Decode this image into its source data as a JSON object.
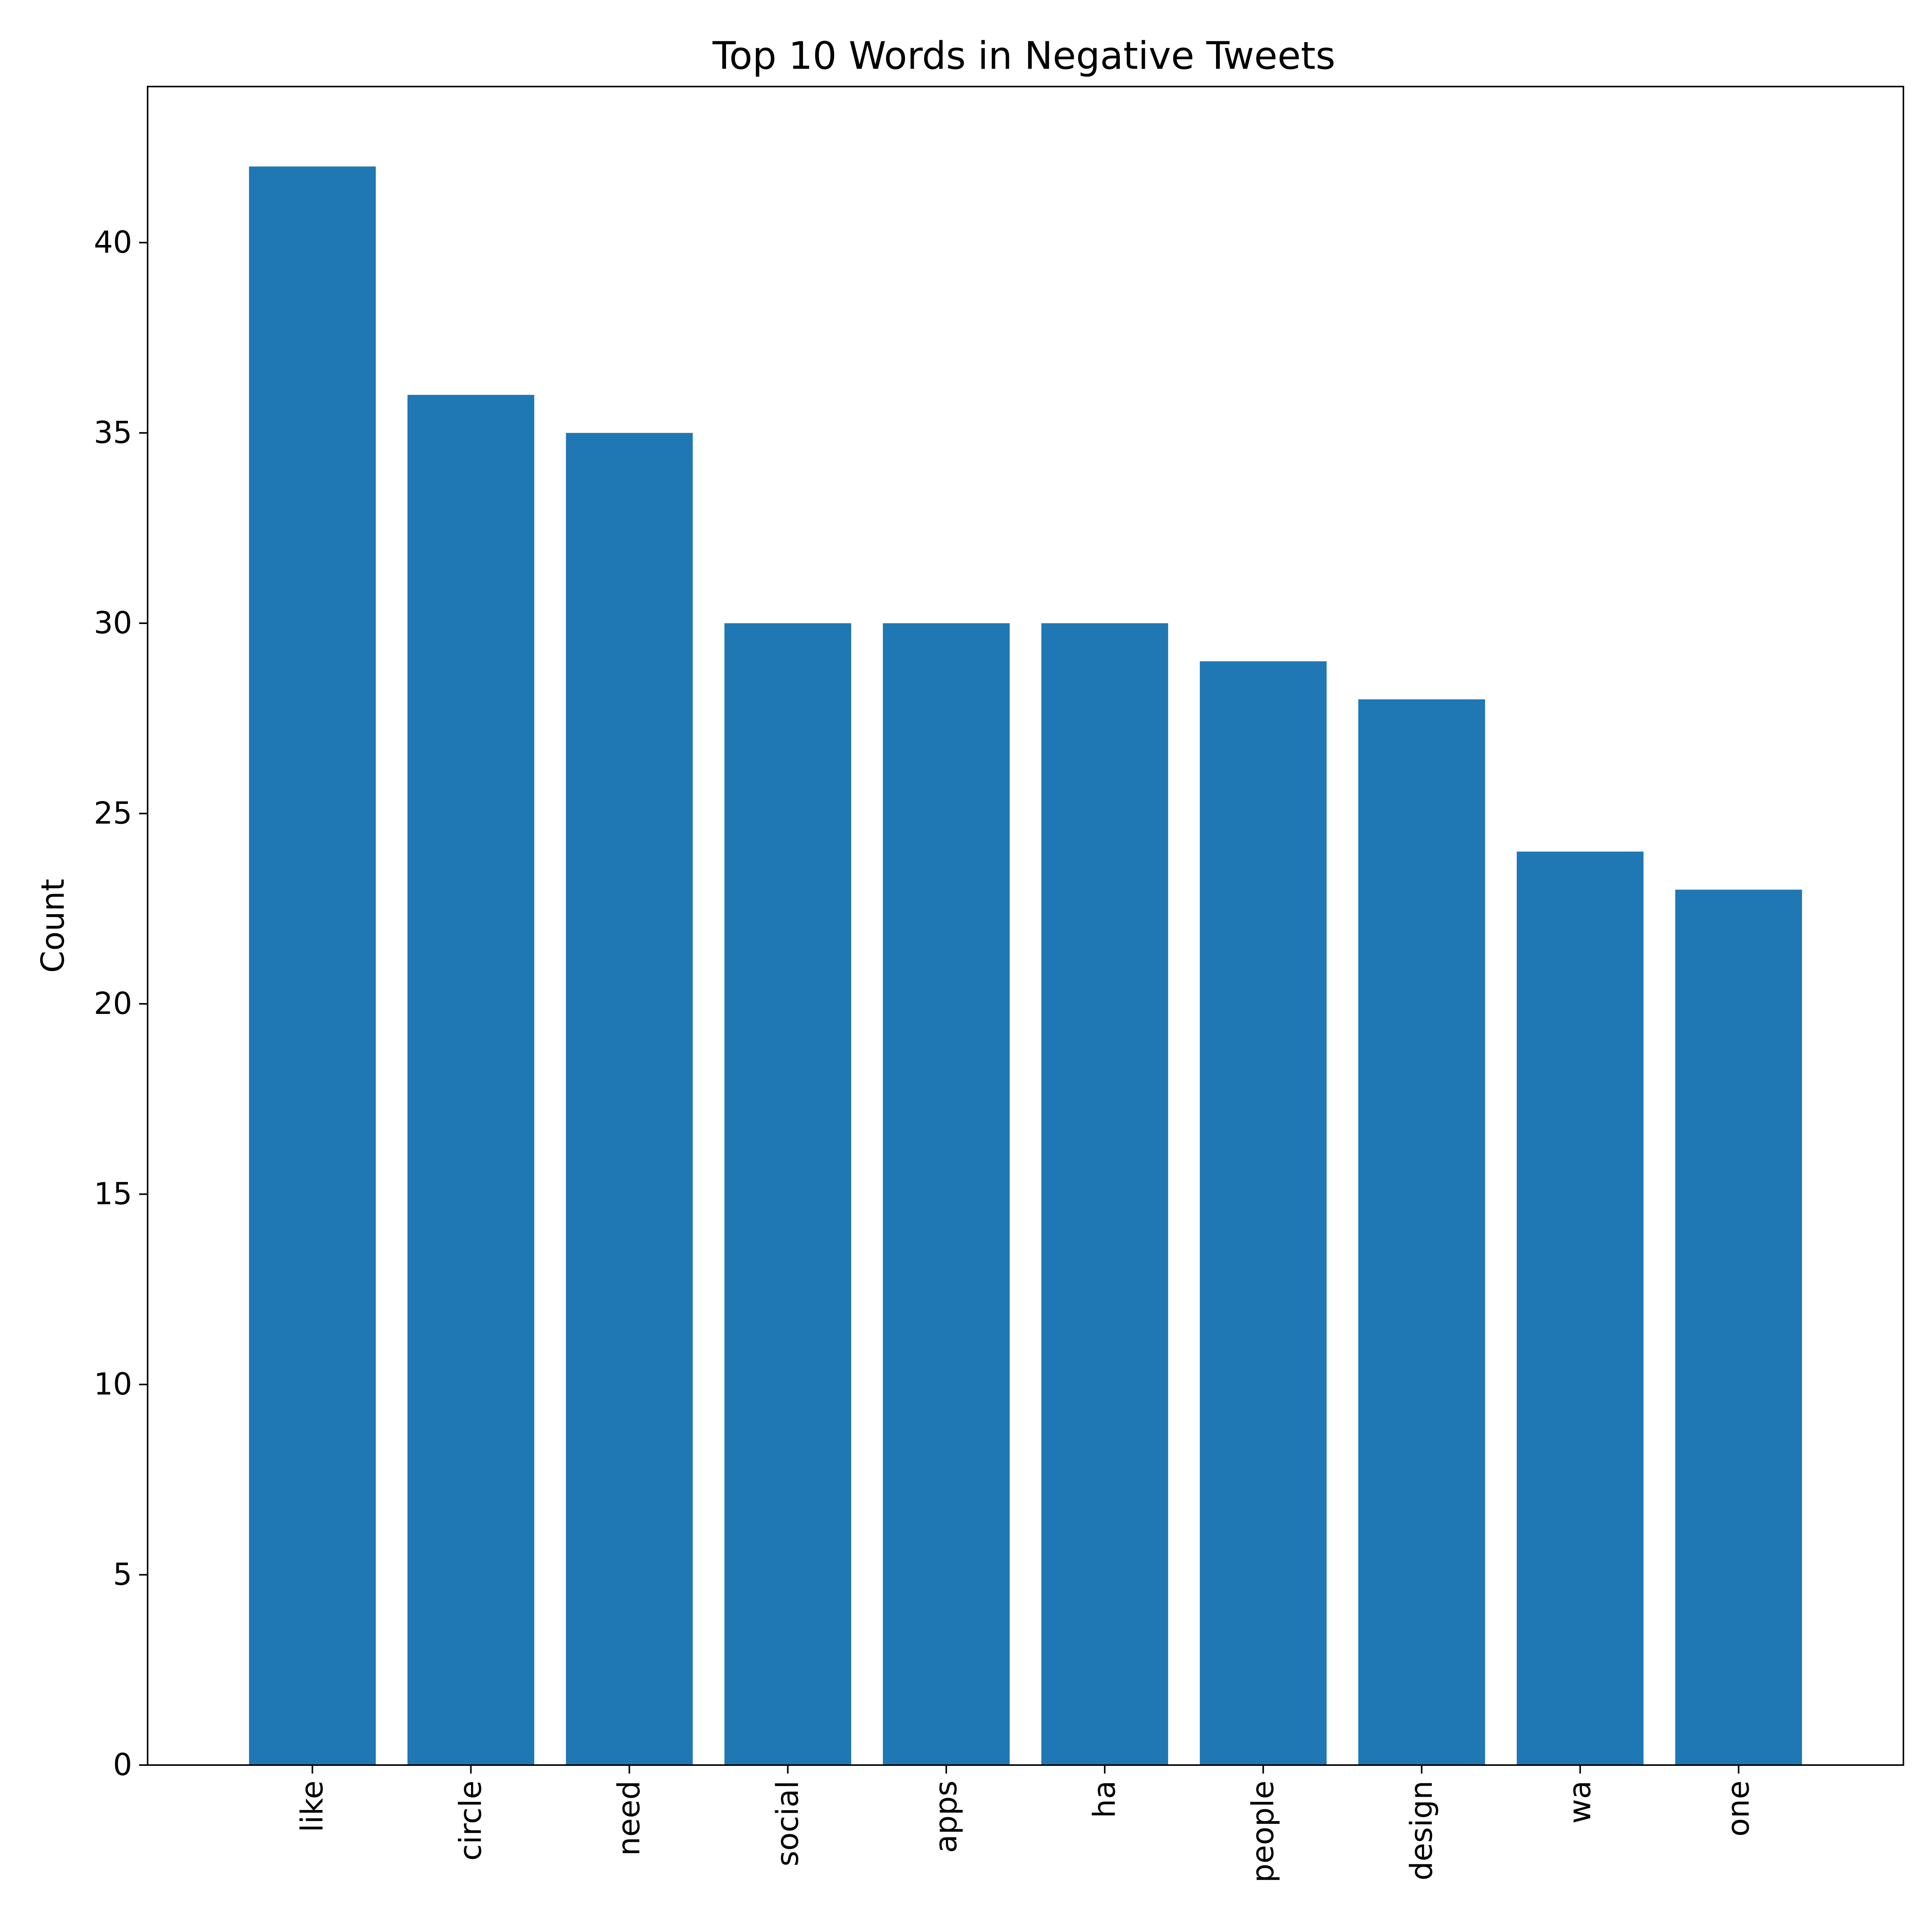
{
  "chart_data": {
    "type": "bar",
    "title": "Top 10 Words in Negative Tweets",
    "xlabel": "",
    "ylabel": "Count",
    "categories": [
      "like",
      "circle",
      "need",
      "social",
      "apps",
      "ha",
      "people",
      "design",
      "wa",
      "one"
    ],
    "values": [
      42,
      36,
      35,
      30,
      30,
      30,
      29,
      28,
      24,
      23
    ],
    "ylim": [
      0,
      44.1
    ],
    "yticks": [
      0,
      5,
      10,
      15,
      20,
      25,
      30,
      35,
      40
    ],
    "ytick_labels": [
      "0",
      "5",
      "10",
      "15",
      "20",
      "25",
      "30",
      "35",
      "40"
    ],
    "grid": false,
    "bar_color": "#1f77b4",
    "xtick_rotation": "vertical"
  }
}
